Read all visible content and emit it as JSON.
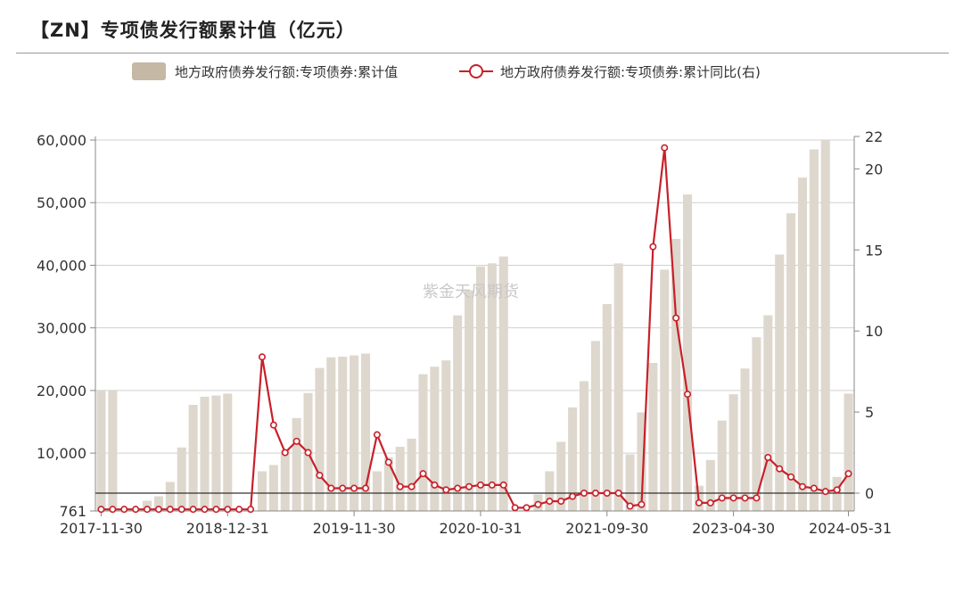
{
  "title": "【ZN】专项债发行额累计值（亿元）",
  "watermark": "紫金天风期货",
  "colors": {
    "bar": "#ded7cd",
    "bar_legend": "#c5b8a5",
    "line": "#c8202a"
  },
  "chart_data": {
    "type": "bar",
    "x_tick_labels": [
      "2017-11-30",
      "2018-12-31",
      "2019-11-30",
      "2020-10-31",
      "2021-09-30",
      "2023-04-30",
      "2024-05-31"
    ],
    "y_left": {
      "ticks": [
        761,
        10000,
        20000,
        30000,
        40000,
        50000,
        60000
      ],
      "tick_labels": [
        "761",
        "10,000",
        "20,000",
        "30,000",
        "40,000",
        "50,000",
        "60,000"
      ],
      "range": [
        761,
        60000
      ]
    },
    "y_right": {
      "ticks": [
        0,
        5,
        10,
        15,
        20,
        22
      ],
      "range": [
        -1,
        22
      ]
    },
    "grid": true,
    "legend_position": "top",
    "series": [
      {
        "name": "地方政府债券发行额:专项债券:累计值",
        "type": "bar",
        "axis": "left",
        "values": [
          20000,
          20000,
          761,
          761,
          2400,
          3100,
          5400,
          10900,
          17700,
          19000,
          19200,
          19500,
          761,
          761,
          7100,
          8100,
          10500,
          15600,
          19600,
          23600,
          25300,
          25400,
          25600,
          25900,
          7100,
          9300,
          11000,
          12300,
          22600,
          23800,
          24800,
          32000,
          36000,
          39800,
          40300,
          41400,
          761,
          761,
          3400,
          7100,
          11800,
          17300,
          21500,
          27900,
          33800,
          40300,
          9800,
          16500,
          24400,
          39300,
          44200,
          51300,
          4800,
          8900,
          15200,
          19400,
          23500,
          28500,
          32000,
          41700,
          48300,
          54000,
          58500,
          60000,
          6200,
          19500
        ]
      },
      {
        "name": "地方政府债券发行额:专项债券:累计同比(右)",
        "type": "line",
        "axis": "right",
        "values": [
          -1,
          -1,
          -1,
          -1,
          -1,
          -1,
          -1,
          -1,
          -1,
          -1,
          -1,
          -1,
          -1,
          -1,
          8.4,
          4.2,
          2.5,
          3.2,
          2.5,
          1.1,
          0.3,
          0.3,
          0.3,
          0.3,
          3.6,
          1.9,
          0.4,
          0.4,
          1.2,
          0.5,
          0.2,
          0.3,
          0.4,
          0.5,
          0.5,
          0.5,
          -0.9,
          -0.9,
          -0.7,
          -0.5,
          -0.5,
          -0.2,
          0,
          0,
          0,
          0,
          -0.8,
          -0.7,
          15.2,
          21.3,
          10.8,
          6.1,
          -0.6,
          -0.6,
          -0.3,
          -0.3,
          -0.3,
          -0.3,
          2.2,
          1.5,
          1,
          0.4,
          0.3,
          0.1,
          0.2,
          1.2
        ]
      }
    ]
  }
}
